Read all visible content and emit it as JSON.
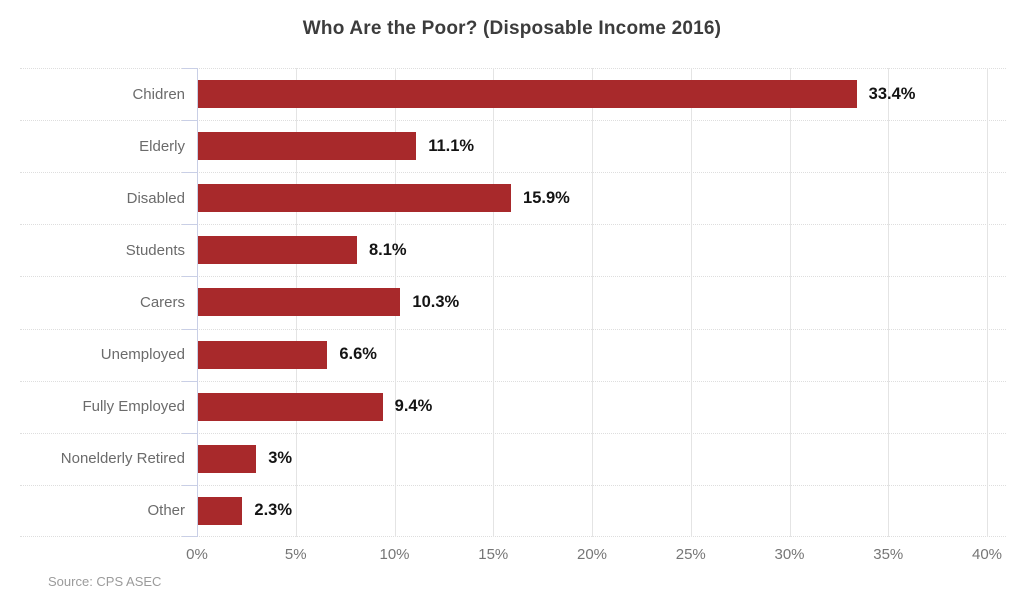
{
  "chart_data": {
    "type": "bar",
    "orientation": "horizontal",
    "title": "Who Are the Poor? (Disposable Income 2016)",
    "categories": [
      "Chidren",
      "Elderly",
      "Disabled",
      "Students",
      "Carers",
      "Unemployed",
      "Fully Employed",
      "Nonelderly Retired",
      "Other"
    ],
    "values": [
      33.4,
      11.1,
      15.9,
      8.1,
      10.3,
      6.6,
      9.4,
      3,
      2.3
    ],
    "value_labels": [
      "33.4%",
      "11.1%",
      "15.9%",
      "8.1%",
      "10.3%",
      "6.6%",
      "9.4%",
      "3%",
      "2.3%"
    ],
    "xlim": [
      0,
      40
    ],
    "x_tick_values": [
      0,
      5,
      10,
      15,
      20,
      25,
      30,
      35,
      40
    ],
    "x_tick_labels": [
      "0%",
      "5%",
      "10%",
      "15%",
      "20%",
      "25%",
      "30%",
      "35%",
      "40%"
    ],
    "grid": true,
    "legend": false,
    "source": "Source: CPS ASEC",
    "colors": {
      "bar": "#a8292b",
      "axis": "#c9cfe6",
      "gridline": "#e4e4e4",
      "row_separator": "#dedede",
      "title_text": "#3c3c3c",
      "category_text": "#6b6b6b",
      "tick_text": "#767676",
      "value_text": "#141414",
      "source_text": "#9b9b9b"
    }
  }
}
